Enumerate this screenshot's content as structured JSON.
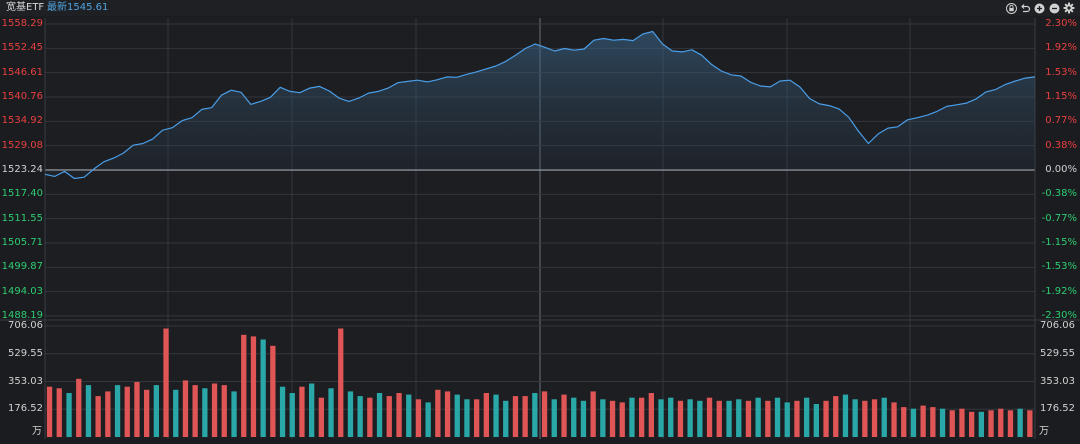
{
  "header": {
    "name": "宽基ETF",
    "last_label": "最新1545.61"
  },
  "toolbar": {
    "icons": [
      "lock-icon",
      "undo-icon",
      "zoom-in-icon",
      "zoom-out-icon",
      "gear-icon"
    ]
  },
  "colors": {
    "background": "#1a1c20",
    "up": "#e84040",
    "down": "#2ecc71",
    "neutral": "#d0d0d0",
    "line": "#4a9ee8",
    "volume_up": "#e05555",
    "volume_down": "#2aa8a8",
    "grid": "#33363c"
  },
  "price_axis": {
    "left_labels": [
      "1558.29",
      "1552.45",
      "1546.61",
      "1540.76",
      "1534.92",
      "1529.08",
      "1523.24",
      "1517.40",
      "1511.55",
      "1505.71",
      "1499.87",
      "1494.03",
      "1488.19"
    ],
    "right_labels": [
      "2.30%",
      "1.92%",
      "1.53%",
      "1.15%",
      "0.77%",
      "0.38%",
      "0.00%",
      "-0.38%",
      "-0.77%",
      "-1.15%",
      "-1.53%",
      "-1.92%",
      "-2.30%"
    ]
  },
  "volume_axis": {
    "labels": [
      "706.06",
      "529.55",
      "353.03",
      "176.52"
    ],
    "unit": "万"
  },
  "chart_data": {
    "type": "line",
    "ylim": [
      1488.19,
      1558.29
    ],
    "base_price": 1523.24,
    "price": [
      1522.2,
      1521.7,
      1522.9,
      1521.2,
      1521.5,
      1523.5,
      1525.2,
      1526.1,
      1527.3,
      1529.2,
      1529.6,
      1530.7,
      1532.8,
      1533.4,
      1535.1,
      1535.8,
      1537.8,
      1538.2,
      1541.2,
      1542.4,
      1541.9,
      1539.0,
      1539.7,
      1540.7,
      1543.1,
      1542.1,
      1541.8,
      1542.9,
      1543.3,
      1542.2,
      1540.5,
      1539.7,
      1540.5,
      1541.7,
      1542.1,
      1542.9,
      1544.2,
      1544.5,
      1544.8,
      1544.4,
      1544.9,
      1545.6,
      1545.5,
      1546.2,
      1546.8,
      1547.5,
      1548.2,
      1549.3,
      1550.8,
      1552.4,
      1553.5,
      1552.7,
      1551.8,
      1552.4,
      1552.0,
      1552.3,
      1554.4,
      1554.8,
      1554.4,
      1554.6,
      1554.3,
      1555.9,
      1556.5,
      1553.5,
      1551.8,
      1551.6,
      1552.1,
      1550.8,
      1548.6,
      1547.0,
      1546.1,
      1545.8,
      1544.3,
      1543.4,
      1543.2,
      1544.6,
      1544.8,
      1543.2,
      1540.4,
      1539.1,
      1538.7,
      1537.9,
      1535.9,
      1532.5,
      1529.6,
      1531.9,
      1533.3,
      1533.6,
      1535.3,
      1535.8,
      1536.4,
      1537.3,
      1538.5,
      1538.9,
      1539.3,
      1540.3,
      1542.0,
      1542.6,
      1543.8,
      1544.6,
      1545.3,
      1545.6
    ],
    "volume": [
      320,
      310,
      280,
      370,
      330,
      260,
      290,
      330,
      320,
      350,
      300,
      330,
      690,
      300,
      360,
      330,
      310,
      340,
      330,
      290,
      650,
      640,
      620,
      580,
      320,
      280,
      320,
      340,
      250,
      310,
      690,
      290,
      260,
      250,
      280,
      260,
      280,
      270,
      240,
      220,
      300,
      290,
      270,
      240,
      240,
      280,
      270,
      230,
      260,
      260,
      280,
      290,
      240,
      270,
      250,
      230,
      290,
      240,
      230,
      220,
      250,
      250,
      280,
      240,
      250,
      230,
      240,
      230,
      250,
      230,
      230,
      240,
      230,
      250,
      230,
      250,
      220,
      230,
      250,
      210,
      230,
      260,
      270,
      240,
      230,
      240,
      250,
      220,
      190,
      180,
      200,
      190,
      180,
      170,
      180,
      160,
      160,
      170,
      180,
      170,
      180,
      170
    ],
    "volume_up": [
      true,
      true,
      false,
      true,
      false,
      true,
      true,
      false,
      true,
      true,
      true,
      false,
      true,
      false,
      true,
      true,
      false,
      true,
      true,
      false,
      true,
      true,
      false,
      true,
      false,
      false,
      true,
      false,
      true,
      false,
      true,
      false,
      false,
      true,
      false,
      true,
      true,
      false,
      true,
      false,
      true,
      true,
      false,
      false,
      true,
      true,
      false,
      false,
      true,
      true,
      false,
      true,
      false,
      true,
      false,
      false,
      true,
      false,
      true,
      true,
      false,
      true,
      true,
      false,
      false,
      true,
      false,
      false,
      true,
      true,
      false,
      false,
      true,
      false,
      true,
      false,
      false,
      true,
      false,
      false,
      true,
      true,
      false,
      false,
      true,
      true,
      false,
      true,
      true,
      false,
      true,
      true,
      false,
      true,
      true,
      true,
      false,
      true,
      true,
      true,
      false,
      true
    ],
    "volume_ylim": [
      0,
      706.06
    ]
  }
}
